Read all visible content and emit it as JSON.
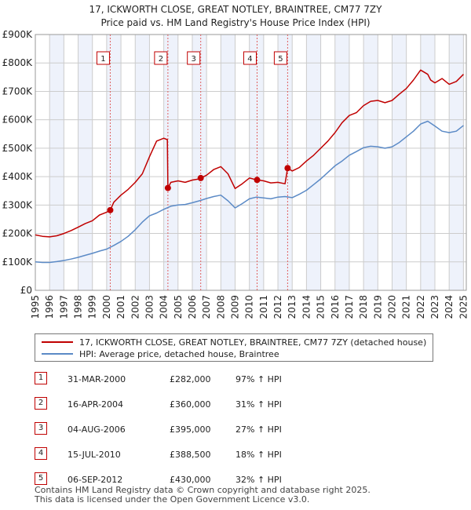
{
  "title": "17, ICKWORTH CLOSE, GREAT NOTLEY, BRAINTREE, CM77 7ZY",
  "subtitle": "Price paid vs. HM Land Registry's House Price Index (HPI)",
  "colors": {
    "property": "#c00000",
    "hpi": "#5b8ac6",
    "grid": "#cccccc",
    "band": "#eef2fb",
    "marker_line": "#e06060"
  },
  "chart_data": {
    "type": "line",
    "title": "17, ICKWORTH CLOSE, GREAT NOTLEY, BRAINTREE, CM77 7ZY",
    "subtitle": "Price paid vs. HM Land Registry's House Price Index (HPI)",
    "xlabel": "",
    "ylabel": "",
    "xlim": [
      1995,
      2025.2
    ],
    "ylim": [
      0,
      900000
    ],
    "y_ticks": [
      0,
      100000,
      200000,
      300000,
      400000,
      500000,
      600000,
      700000,
      800000,
      900000
    ],
    "y_tick_labels": [
      "£0",
      "£100K",
      "£200K",
      "£300K",
      "£400K",
      "£500K",
      "£600K",
      "£700K",
      "£800K",
      "£900K"
    ],
    "x_ticks": [
      1995,
      1996,
      1997,
      1998,
      1999,
      2000,
      2001,
      2002,
      2003,
      2004,
      2005,
      2006,
      2007,
      2008,
      2009,
      2010,
      2011,
      2012,
      2013,
      2014,
      2015,
      2016,
      2017,
      2018,
      2019,
      2020,
      2021,
      2022,
      2023,
      2024,
      2025
    ],
    "x_tick_labels": [
      "1995",
      "1996",
      "1997",
      "1998",
      "1999",
      "2000",
      "2001",
      "2002",
      "2003",
      "2004",
      "2005",
      "2006",
      "2007",
      "2008",
      "2009",
      "2010",
      "2011",
      "2012",
      "2013",
      "2014",
      "2015",
      "2016",
      "2017",
      "2018",
      "2019",
      "2020",
      "2021",
      "2022",
      "2023",
      "2024",
      "2025"
    ],
    "grid": true,
    "series": [
      {
        "name": "17, ICKWORTH CLOSE, GREAT NOTLEY, BRAINTREE, CM77 7ZY (detached house)",
        "color": "#c00000",
        "x": [
          1995,
          1995.5,
          1996,
          1996.5,
          1997,
          1997.5,
          1998,
          1998.5,
          1999,
          1999.5,
          2000,
          2000.25,
          2000.5,
          2001,
          2001.5,
          2002,
          2002.5,
          2003,
          2003.5,
          2004,
          2004.25,
          2004.29,
          2004.5,
          2005,
          2005.5,
          2006,
          2006.5,
          2006.6,
          2007,
          2007.5,
          2008,
          2008.5,
          2009,
          2009.5,
          2010,
          2010.54,
          2011,
          2011.5,
          2012,
          2012.5,
          2012.68,
          2013,
          2013.5,
          2014,
          2014.5,
          2015,
          2015.5,
          2016,
          2016.5,
          2017,
          2017.5,
          2018,
          2018.5,
          2019,
          2019.5,
          2020,
          2020.5,
          2021,
          2021.5,
          2022,
          2022.5,
          2022.7,
          2023,
          2023.5,
          2024,
          2024.5,
          2025
        ],
        "y": [
          195000,
          190000,
          188000,
          192000,
          200000,
          210000,
          222000,
          235000,
          245000,
          265000,
          275000,
          282000,
          310000,
          335000,
          355000,
          380000,
          410000,
          470000,
          525000,
          535000,
          530000,
          360000,
          380000,
          385000,
          380000,
          388000,
          392000,
          395000,
          405000,
          425000,
          435000,
          410000,
          358000,
          375000,
          395000,
          388500,
          385000,
          378000,
          380000,
          375000,
          430000,
          420000,
          432000,
          455000,
          475000,
          500000,
          525000,
          555000,
          590000,
          615000,
          625000,
          650000,
          665000,
          668000,
          660000,
          668000,
          690000,
          710000,
          740000,
          775000,
          760000,
          740000,
          730000,
          745000,
          725000,
          735000,
          760000
        ]
      },
      {
        "name": "HPI: Average price, detached house, Braintree",
        "color": "#5b8ac6",
        "x": [
          1995,
          1995.5,
          1996,
          1996.5,
          1997,
          1997.5,
          1998,
          1998.5,
          1999,
          1999.5,
          2000,
          2000.5,
          2001,
          2001.5,
          2002,
          2002.5,
          2003,
          2003.5,
          2004,
          2004.5,
          2005,
          2005.5,
          2006,
          2006.5,
          2007,
          2007.5,
          2008,
          2008.5,
          2009,
          2009.5,
          2010,
          2010.5,
          2011,
          2011.5,
          2012,
          2012.5,
          2013,
          2013.5,
          2014,
          2014.5,
          2015,
          2015.5,
          2016,
          2016.5,
          2017,
          2017.5,
          2018,
          2018.5,
          2019,
          2019.5,
          2020,
          2020.5,
          2021,
          2021.5,
          2022,
          2022.5,
          2023,
          2023.5,
          2024,
          2024.5,
          2025
        ],
        "y": [
          100000,
          98000,
          98000,
          101000,
          105000,
          110000,
          116000,
          123000,
          130000,
          138000,
          145000,
          158000,
          172000,
          190000,
          213000,
          240000,
          262000,
          272000,
          285000,
          296000,
          300000,
          302000,
          308000,
          315000,
          323000,
          330000,
          335000,
          315000,
          290000,
          305000,
          322000,
          328000,
          325000,
          322000,
          328000,
          330000,
          326000,
          338000,
          352000,
          372000,
          392000,
          415000,
          438000,
          455000,
          475000,
          488000,
          502000,
          507000,
          505000,
          500000,
          505000,
          520000,
          540000,
          560000,
          585000,
          595000,
          578000,
          560000,
          555000,
          560000,
          580000
        ]
      }
    ],
    "sales": [
      {
        "label": "1",
        "x": 2000.25,
        "y": 282000
      },
      {
        "label": "2",
        "x": 2004.29,
        "y": 360000
      },
      {
        "label": "3",
        "x": 2006.59,
        "y": 395000
      },
      {
        "label": "4",
        "x": 2010.54,
        "y": 388500
      },
      {
        "label": "5",
        "x": 2012.68,
        "y": 430000
      }
    ],
    "legend": {
      "position": "bottom",
      "entries": [
        "17, ICKWORTH CLOSE, GREAT NOTLEY, BRAINTREE, CM77 7ZY (detached house)",
        "HPI: Average price, detached house, Braintree"
      ]
    }
  },
  "sales_table": [
    {
      "num": "1",
      "date": "31-MAR-2000",
      "price": "£282,000",
      "hpi": "97% ↑ HPI"
    },
    {
      "num": "2",
      "date": "16-APR-2004",
      "price": "£360,000",
      "hpi": "31% ↑ HPI"
    },
    {
      "num": "3",
      "date": "04-AUG-2006",
      "price": "£395,000",
      "hpi": "27% ↑ HPI"
    },
    {
      "num": "4",
      "date": "15-JUL-2010",
      "price": "£388,500",
      "hpi": "18% ↑ HPI"
    },
    {
      "num": "5",
      "date": "06-SEP-2012",
      "price": "£430,000",
      "hpi": "32% ↑ HPI"
    }
  ],
  "footer": {
    "line1": "Contains HM Land Registry data © Crown copyright and database right 2025.",
    "line2": "This data is licensed under the Open Government Licence v3.0."
  }
}
